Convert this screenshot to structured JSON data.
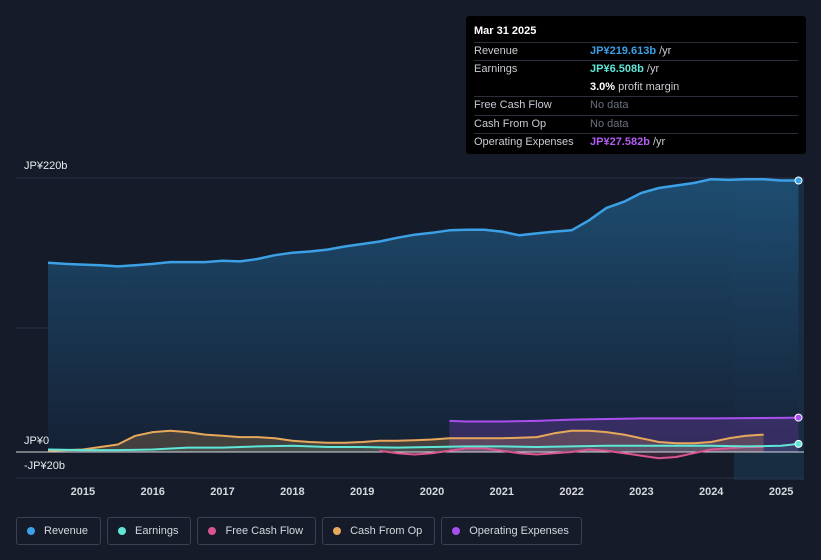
{
  "tooltip": {
    "date": "Mar 31 2025",
    "rows": [
      {
        "label": "Revenue",
        "value": "JP¥219.613b",
        "unit": " /yr",
        "color": "#3ba0e6"
      },
      {
        "label": "Earnings",
        "value": "JP¥6.508b",
        "unit": " /yr",
        "color": "#5ee6d6"
      },
      {
        "label": "",
        "value": "3.0%",
        "unit": " profit margin",
        "color": "#ffffff"
      },
      {
        "label": "Free Cash Flow",
        "value": "No data",
        "unit": "",
        "color": "#6b7180"
      },
      {
        "label": "Cash From Op",
        "value": "No data",
        "unit": "",
        "color": "#6b7180"
      },
      {
        "label": "Operating Expenses",
        "value": "JP¥27.582b",
        "unit": " /yr",
        "color": "#b35cf2"
      }
    ]
  },
  "legend": [
    {
      "label": "Revenue",
      "color": "#3ba0e6"
    },
    {
      "label": "Earnings",
      "color": "#5ee6d6"
    },
    {
      "label": "Free Cash Flow",
      "color": "#d9558f"
    },
    {
      "label": "Cash From Op",
      "color": "#e8a85c"
    },
    {
      "label": "Operating Expenses",
      "color": "#a94ff0"
    }
  ],
  "chart_data": {
    "type": "area",
    "title": "",
    "y_labels": [
      "JP¥220b",
      "JP¥0",
      "-JP¥20b"
    ],
    "ylim": [
      -20,
      220
    ],
    "x_ticks": [
      "2015",
      "2016",
      "2017",
      "2018",
      "2019",
      "2020",
      "2021",
      "2022",
      "2023",
      "2024",
      "2025"
    ],
    "xlim": [
      2014.5,
      2025.3
    ],
    "series": [
      {
        "name": "Revenue",
        "color": "#3ba0e6",
        "points": [
          [
            2014.5,
            152
          ],
          [
            2014.75,
            151
          ],
          [
            2015.0,
            150.5
          ],
          [
            2015.25,
            150
          ],
          [
            2015.5,
            149
          ],
          [
            2015.75,
            150
          ],
          [
            2016.0,
            151
          ],
          [
            2016.25,
            152.5
          ],
          [
            2016.5,
            152.5
          ],
          [
            2016.75,
            152.5
          ],
          [
            2017.0,
            153.5
          ],
          [
            2017.25,
            153
          ],
          [
            2017.5,
            155
          ],
          [
            2017.75,
            158
          ],
          [
            2018.0,
            160
          ],
          [
            2018.25,
            161
          ],
          [
            2018.5,
            162.5
          ],
          [
            2018.75,
            165
          ],
          [
            2019.0,
            167
          ],
          [
            2019.25,
            169
          ],
          [
            2019.5,
            172
          ],
          [
            2019.75,
            174.5
          ],
          [
            2020.0,
            176
          ],
          [
            2020.25,
            178
          ],
          [
            2020.5,
            178.5
          ],
          [
            2020.75,
            178.5
          ],
          [
            2021.0,
            177
          ],
          [
            2021.25,
            174
          ],
          [
            2021.5,
            175.5
          ],
          [
            2021.75,
            177
          ],
          [
            2022.0,
            178
          ],
          [
            2022.25,
            186
          ],
          [
            2022.5,
            196
          ],
          [
            2022.75,
            201
          ],
          [
            2023.0,
            208
          ],
          [
            2023.25,
            212
          ],
          [
            2023.5,
            214
          ],
          [
            2023.75,
            216
          ],
          [
            2024.0,
            219
          ],
          [
            2024.25,
            218.5
          ],
          [
            2024.5,
            219
          ],
          [
            2024.75,
            219
          ],
          [
            2025.0,
            218
          ],
          [
            2025.25,
            218
          ],
          [
            2024.9,
            219.613
          ]
        ]
      },
      {
        "name": "Earnings",
        "color": "#5ee6d6",
        "points": [
          [
            2014.5,
            2
          ],
          [
            2015.0,
            1.5
          ],
          [
            2015.5,
            1.5
          ],
          [
            2016.0,
            2
          ],
          [
            2016.5,
            3.5
          ],
          [
            2017.0,
            3.5
          ],
          [
            2017.5,
            4.5
          ],
          [
            2018.0,
            5
          ],
          [
            2018.5,
            4
          ],
          [
            2019.0,
            4
          ],
          [
            2019.5,
            3.5
          ],
          [
            2020.0,
            4
          ],
          [
            2020.5,
            4.5
          ],
          [
            2021.0,
            4.5
          ],
          [
            2021.5,
            4
          ],
          [
            2022.0,
            4.5
          ],
          [
            2022.5,
            5
          ],
          [
            2023.0,
            5
          ],
          [
            2023.5,
            5
          ],
          [
            2024.0,
            5
          ],
          [
            2024.5,
            4.5
          ],
          [
            2025.0,
            5
          ],
          [
            2025.25,
            6.508
          ]
        ]
      },
      {
        "name": "Free Cash Flow",
        "color": "#d9558f",
        "points": [
          [
            2019.25,
            1
          ],
          [
            2019.5,
            -1
          ],
          [
            2019.75,
            -2
          ],
          [
            2020.0,
            -1
          ],
          [
            2020.25,
            1
          ],
          [
            2020.5,
            3
          ],
          [
            2020.75,
            3
          ],
          [
            2021.0,
            1
          ],
          [
            2021.25,
            -1
          ],
          [
            2021.5,
            -2
          ],
          [
            2021.75,
            -1
          ],
          [
            2022.0,
            0
          ],
          [
            2022.25,
            2
          ],
          [
            2022.5,
            1
          ],
          [
            2022.75,
            -1
          ],
          [
            2023.0,
            -3
          ],
          [
            2023.25,
            -5
          ],
          [
            2023.5,
            -4
          ],
          [
            2023.75,
            -1
          ],
          [
            2024.0,
            2
          ],
          [
            2024.25,
            3
          ],
          [
            2024.5,
            4
          ],
          [
            2024.75,
            4
          ]
        ]
      },
      {
        "name": "Cash From Op",
        "color": "#e8a85c",
        "points": [
          [
            2014.5,
            1
          ],
          [
            2015.0,
            2
          ],
          [
            2015.5,
            6
          ],
          [
            2015.75,
            13
          ],
          [
            2016.0,
            16
          ],
          [
            2016.25,
            17
          ],
          [
            2016.5,
            16
          ],
          [
            2016.75,
            14
          ],
          [
            2017.0,
            13
          ],
          [
            2017.25,
            12
          ],
          [
            2017.5,
            12
          ],
          [
            2017.75,
            11
          ],
          [
            2018.0,
            9
          ],
          [
            2018.25,
            8
          ],
          [
            2018.5,
            7.5
          ],
          [
            2018.75,
            7.5
          ],
          [
            2019.0,
            8
          ],
          [
            2019.25,
            9
          ],
          [
            2019.5,
            9
          ],
          [
            2019.75,
            9.5
          ],
          [
            2020.0,
            10
          ],
          [
            2020.25,
            11
          ],
          [
            2020.5,
            11
          ],
          [
            2020.75,
            11
          ],
          [
            2021.0,
            11
          ],
          [
            2021.25,
            11.5
          ],
          [
            2021.5,
            12
          ],
          [
            2021.75,
            15
          ],
          [
            2022.0,
            17
          ],
          [
            2022.25,
            17
          ],
          [
            2022.5,
            16
          ],
          [
            2022.75,
            14
          ],
          [
            2023.0,
            11
          ],
          [
            2023.25,
            8
          ],
          [
            2023.5,
            7
          ],
          [
            2023.75,
            7
          ],
          [
            2024.0,
            8
          ],
          [
            2024.25,
            11
          ],
          [
            2024.5,
            13
          ],
          [
            2024.75,
            14
          ]
        ]
      },
      {
        "name": "Operating Expenses",
        "color": "#a94ff0",
        "points": [
          [
            2020.25,
            25
          ],
          [
            2020.5,
            24.5
          ],
          [
            2021.0,
            24.5
          ],
          [
            2021.5,
            25
          ],
          [
            2022.0,
            26
          ],
          [
            2022.5,
            26.5
          ],
          [
            2023.0,
            27
          ],
          [
            2023.5,
            27
          ],
          [
            2024.0,
            27
          ],
          [
            2024.5,
            27.2
          ],
          [
            2025.0,
            27.4
          ],
          [
            2025.25,
            27.582
          ]
        ]
      }
    ]
  }
}
